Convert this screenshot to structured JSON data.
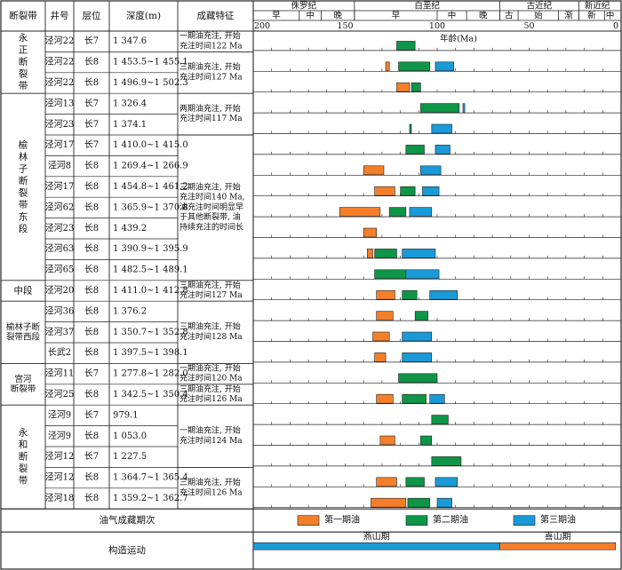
{
  "headers": {
    "fault_zone": "断裂带",
    "well": "井号",
    "layer": "层位",
    "depth": "深度(m)",
    "features": "成藏特征",
    "axis_label": "年龄(Ma)"
  },
  "periods": [
    {
      "name": "侏罗纪",
      "start": 200,
      "end": 145
    },
    {
      "name": "白垩纪",
      "start": 145,
      "end": 66
    },
    {
      "name": "古近纪",
      "start": 66,
      "end": 23
    },
    {
      "name": "新近纪",
      "start": 23,
      "end": 3
    }
  ],
  "epochs": [
    {
      "name": "早",
      "start": 200,
      "end": 175
    },
    {
      "name": "中",
      "start": 175,
      "end": 163
    },
    {
      "name": "晚",
      "start": 163,
      "end": 145
    },
    {
      "name": "早",
      "start": 145,
      "end": 100
    },
    {
      "name": "中",
      "start": 100,
      "end": 84
    },
    {
      "name": "晚",
      "start": 84,
      "end": 66
    },
    {
      "name": "古",
      "start": 66,
      "end": 56
    },
    {
      "name": "始",
      "start": 56,
      "end": 34
    },
    {
      "name": "渐",
      "start": 34,
      "end": 23
    },
    {
      "name": "新",
      "start": 23,
      "end": 9
    },
    {
      "name": "中",
      "start": 9,
      "end": 3
    }
  ],
  "ticks": [
    200,
    150,
    100,
    50,
    0
  ],
  "colors": {
    "phase1": "#F47F2A",
    "phase2": "#0E9547",
    "phase3": "#1A9AD6"
  },
  "legend": {
    "title": "油气成藏期次",
    "items": [
      {
        "label": "第一期油",
        "phase": 1
      },
      {
        "label": "第二期油",
        "phase": 2
      },
      {
        "label": "第三期油",
        "phase": 3
      }
    ]
  },
  "tectonic": {
    "title": "构造运动",
    "segments": [
      {
        "name": "燕山期",
        "start": 200,
        "end": 66,
        "color": "#1A9AD6"
      },
      {
        "name": "喜山期",
        "start": 66,
        "end": 3,
        "color": "#F47F2A"
      }
    ]
  },
  "zones": [
    {
      "name": "永\n正\n断\n裂\n带",
      "start": 0,
      "end": 3
    },
    {
      "name": "榆\n林\n子\n断\n裂\n带\n东\n段",
      "start": 3,
      "end": 12
    },
    {
      "name": "中段",
      "start": 12,
      "end": 13
    },
    {
      "name": "榆林子断\n裂带西段",
      "start": 13,
      "end": 16
    },
    {
      "name": "宫河\n断裂带",
      "start": 16,
      "end": 18
    },
    {
      "name": "永\n和\n断\n裂\n带",
      "start": 18,
      "end": 23
    }
  ],
  "features": [
    {
      "text": "一期油充注, 开始\n充注时间122 Ma",
      "start": 0,
      "end": 1
    },
    {
      "text": "三期油充注, 开始\n充注时间127 Ma",
      "start": 1,
      "end": 3
    },
    {
      "text": "两期油充注, 开始\n充注时间117 Ma",
      "start": 3,
      "end": 5
    },
    {
      "text": "三期油充注, 开始\n充注时间140 Ma,\n油充注时间明显早\n于其他断裂带, 油\n持续充注的时间长",
      "start": 5,
      "end": 12
    },
    {
      "text": "三期油充注, 开始\n充注时间127 Ma",
      "start": 12,
      "end": 13
    },
    {
      "text": "三期油充注, 开始\n充注时间128 Ma",
      "start": 13,
      "end": 16
    },
    {
      "text": "一期油充注, 开始\n充注时间120 Ma",
      "start": 16,
      "end": 17
    },
    {
      "text": "三期油充注, 开始\n充注时间126 Ma",
      "start": 17,
      "end": 18
    },
    {
      "text": "一期油充注, 开始\n充注时间124 Ma",
      "start": 18,
      "end": 21
    },
    {
      "text": "三期油充注, 开始\n充注时间126 Ma",
      "start": 21,
      "end": 23
    }
  ],
  "rows": [
    {
      "well": "泾河22",
      "layer": "长7",
      "depth": "1 347.6",
      "bars": [
        {
          "phase": 2,
          "start": 122,
          "end": 112
        }
      ]
    },
    {
      "well": "泾河22",
      "layer": "长8",
      "depth": "1 453.5~1 455.1",
      "bars": [
        {
          "phase": 1,
          "start": 128,
          "end": 126
        },
        {
          "phase": 2,
          "start": 121,
          "end": 104
        },
        {
          "phase": 3,
          "start": 101,
          "end": 91
        }
      ]
    },
    {
      "well": "泾河22",
      "layer": "长8",
      "depth": "1 496.9~1 502.3",
      "bars": [
        {
          "phase": 1,
          "start": 122,
          "end": 115
        },
        {
          "phase": 2,
          "start": 114,
          "end": 109
        }
      ]
    },
    {
      "well": "泾河13",
      "layer": "长7",
      "depth": "1 326.4",
      "bars": [
        {
          "phase": 2,
          "start": 109,
          "end": 88
        },
        {
          "phase": 3,
          "start": 86,
          "end": 85
        }
      ]
    },
    {
      "well": "泾河23",
      "layer": "长7",
      "depth": "1 374.1",
      "bars": [
        {
          "phase": 2,
          "start": 115,
          "end": 114
        },
        {
          "phase": 3,
          "start": 103,
          "end": 92
        }
      ]
    },
    {
      "well": "泾河17",
      "layer": "长7",
      "depth": "1 410.0~1 415.0",
      "bars": [
        {
          "phase": 2,
          "start": 117,
          "end": 107
        },
        {
          "phase": 3,
          "start": 101,
          "end": 93
        }
      ]
    },
    {
      "well": "泾河8",
      "layer": "长8",
      "depth": "1 269.4~1 266.9",
      "bars": [
        {
          "phase": 1,
          "start": 140,
          "end": 129
        },
        {
          "phase": 3,
          "start": 109,
          "end": 98
        }
      ]
    },
    {
      "well": "泾河17",
      "layer": "长8",
      "depth": "1 454.8~1 461.2",
      "bars": [
        {
          "phase": 1,
          "start": 134,
          "end": 123
        },
        {
          "phase": 2,
          "start": 120,
          "end": 112
        },
        {
          "phase": 3,
          "start": 108,
          "end": 99
        }
      ]
    },
    {
      "well": "泾河62",
      "layer": "长8",
      "depth": "1 365.9~1 370.8",
      "bars": [
        {
          "phase": 1,
          "start": 153,
          "end": 131
        },
        {
          "phase": 2,
          "start": 126,
          "end": 117
        },
        {
          "phase": 3,
          "start": 115,
          "end": 103
        }
      ]
    },
    {
      "well": "泾河23",
      "layer": "长8",
      "depth": "1 439.2",
      "bars": [
        {
          "phase": 1,
          "start": 140,
          "end": 133
        }
      ]
    },
    {
      "well": "泾河63",
      "layer": "长8",
      "depth": "1 390.9~1 395.9",
      "bars": [
        {
          "phase": 1,
          "start": 138,
          "end": 135
        },
        {
          "phase": 2,
          "start": 134,
          "end": 122
        },
        {
          "phase": 3,
          "start": 119,
          "end": 101
        }
      ]
    },
    {
      "well": "泾河65",
      "layer": "长8",
      "depth": "1 482.5~1 489.1",
      "bars": [
        {
          "phase": 2,
          "start": 134,
          "end": 117
        },
        {
          "phase": 3,
          "start": 117,
          "end": 99
        }
      ]
    },
    {
      "well": "泾河20",
      "layer": "长8",
      "depth": "1 411.0~1 412.8",
      "bars": [
        {
          "phase": 1,
          "start": 133,
          "end": 123
        },
        {
          "phase": 2,
          "start": 119,
          "end": 111
        },
        {
          "phase": 3,
          "start": 104,
          "end": 89
        }
      ]
    },
    {
      "well": "泾河36",
      "layer": "长8",
      "depth": "1 376.2",
      "bars": [
        {
          "phase": 1,
          "start": 133,
          "end": 124
        },
        {
          "phase": 2,
          "start": 112,
          "end": 105
        }
      ]
    },
    {
      "well": "泾河37",
      "layer": "长8",
      "depth": "1 350.7~1 352.8",
      "bars": [
        {
          "phase": 1,
          "start": 135,
          "end": 126
        },
        {
          "phase": 3,
          "start": 119,
          "end": 103
        }
      ]
    },
    {
      "well": "长武2",
      "layer": "长8",
      "depth": "1 397.5~1 398.1",
      "bars": [
        {
          "phase": 1,
          "start": 134,
          "end": 128
        },
        {
          "phase": 3,
          "start": 119,
          "end": 103
        }
      ]
    },
    {
      "well": "泾河11",
      "layer": "长7",
      "depth": "1 277.8~1 282.0",
      "bars": [
        {
          "phase": 2,
          "start": 121,
          "end": 100
        }
      ]
    },
    {
      "well": "泾河25",
      "layer": "长8",
      "depth": "1 342.5~1 350.4",
      "bars": [
        {
          "phase": 1,
          "start": 133,
          "end": 124
        },
        {
          "phase": 2,
          "start": 119,
          "end": 106
        },
        {
          "phase": 3,
          "start": 104,
          "end": 96
        }
      ]
    },
    {
      "well": "泾河9",
      "layer": "长7",
      "depth": "979.1",
      "bars": [
        {
          "phase": 2,
          "start": 103,
          "end": 94
        }
      ]
    },
    {
      "well": "泾河9",
      "layer": "长8",
      "depth": "1 053.0",
      "bars": [
        {
          "phase": 1,
          "start": 131,
          "end": 123
        },
        {
          "phase": 2,
          "start": 109,
          "end": 103
        }
      ]
    },
    {
      "well": "泾河12",
      "layer": "长7",
      "depth": "1 227.5",
      "bars": [
        {
          "phase": 2,
          "start": 103,
          "end": 87
        }
      ]
    },
    {
      "well": "泾河12",
      "layer": "长8",
      "depth": "1 364.7~1 365.4",
      "bars": [
        {
          "phase": 1,
          "start": 133,
          "end": 122
        },
        {
          "phase": 2,
          "start": 117,
          "end": 107
        },
        {
          "phase": 3,
          "start": 101,
          "end": 89
        }
      ]
    },
    {
      "well": "泾河18",
      "layer": "长8",
      "depth": "1 359.2~1 362.7",
      "bars": [
        {
          "phase": 1,
          "start": 136,
          "end": 117
        },
        {
          "phase": 2,
          "start": 116,
          "end": 104
        },
        {
          "phase": 3,
          "start": 100,
          "end": 92
        }
      ]
    }
  ]
}
